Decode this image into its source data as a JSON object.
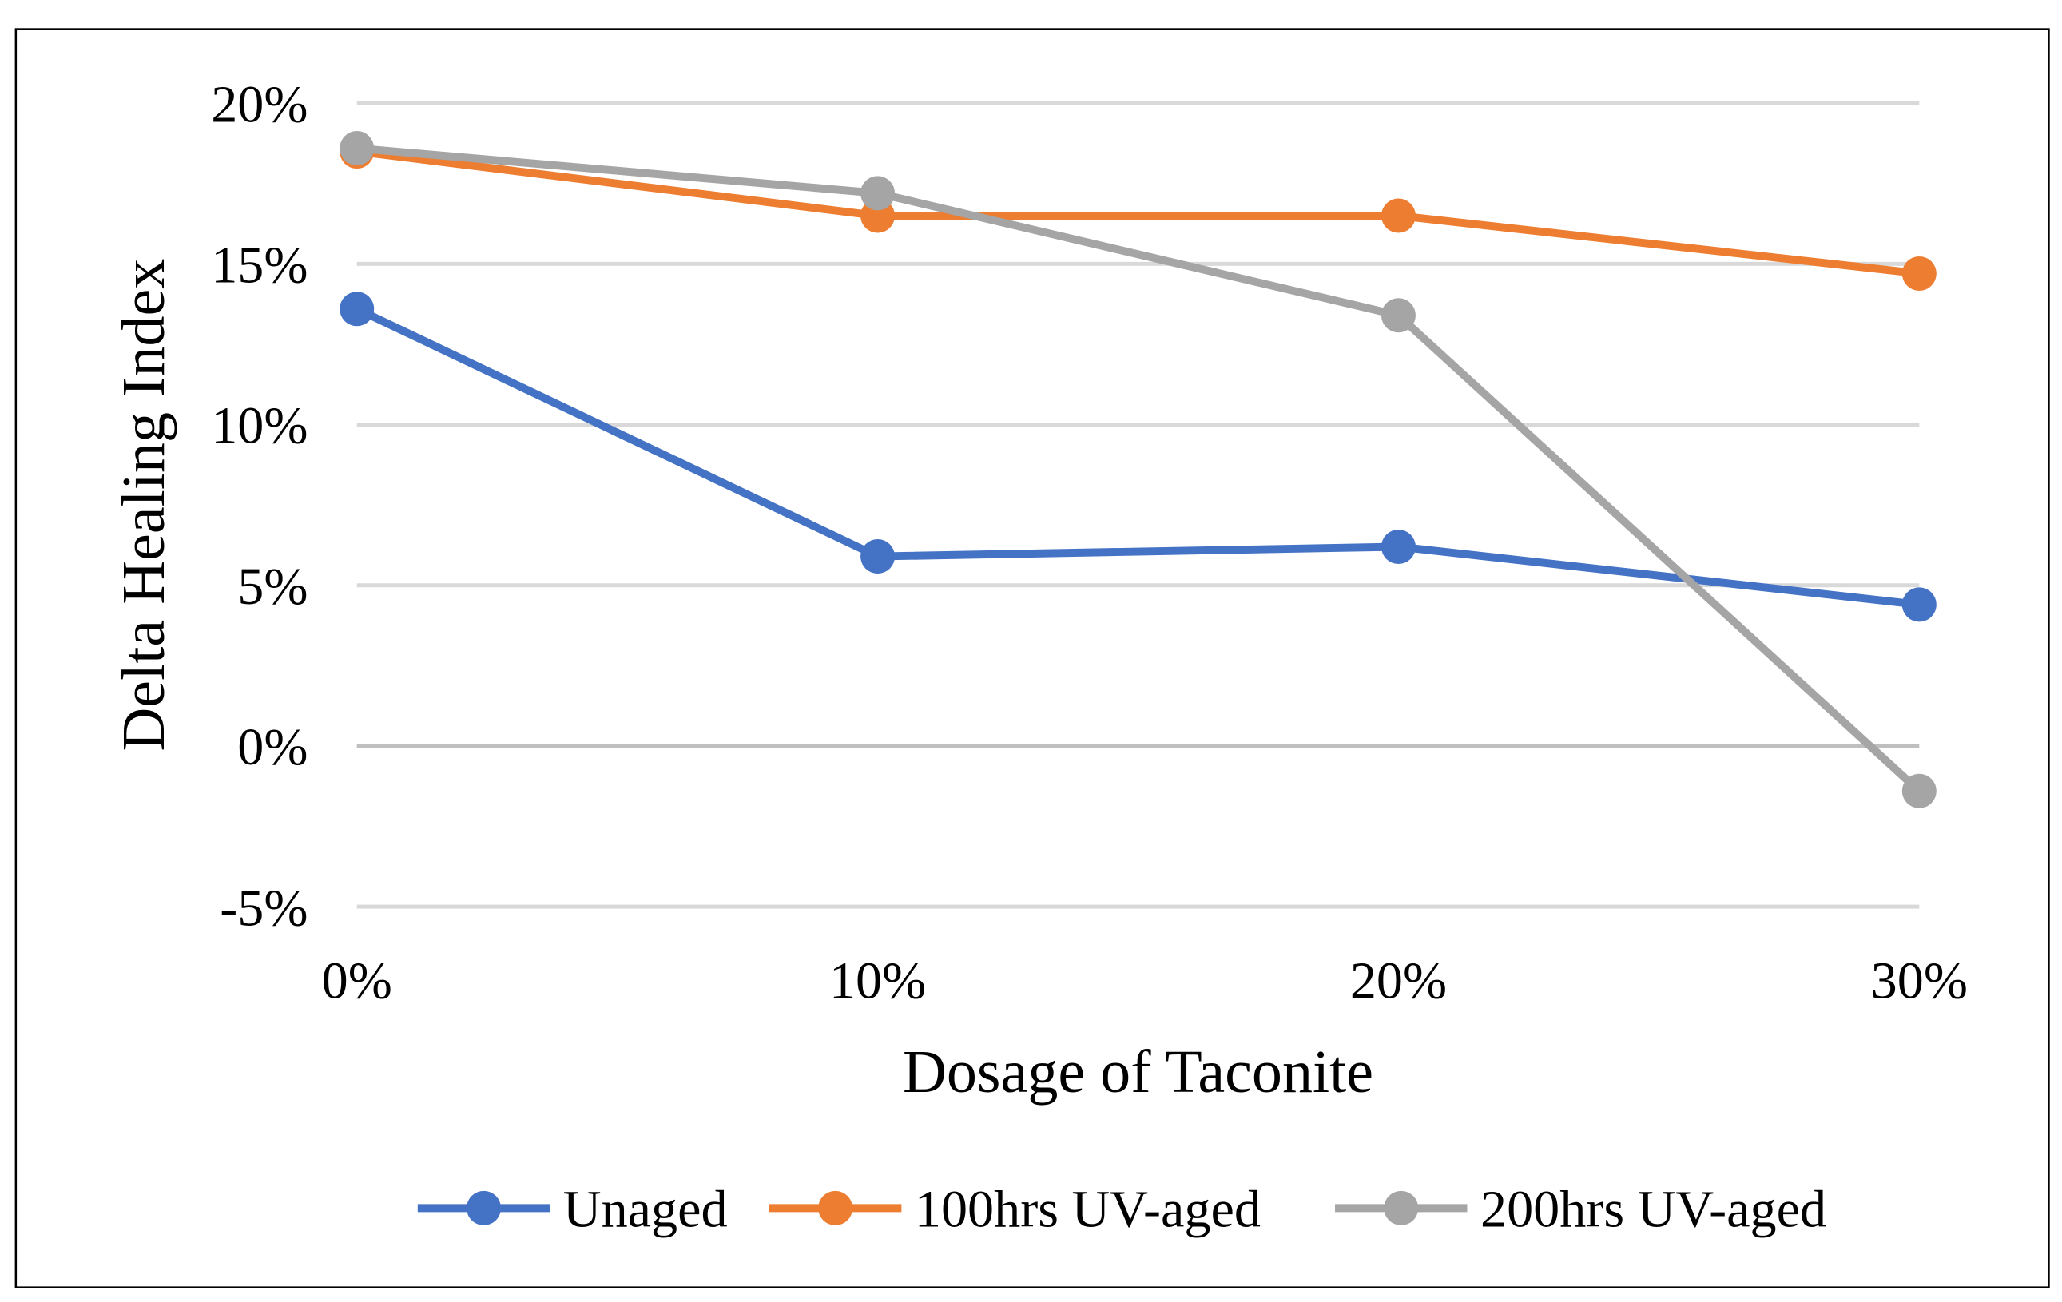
{
  "chart_data": {
    "type": "line",
    "title": "",
    "xlabel": "Dosage of Taconite",
    "ylabel": "Delta Healing Index",
    "categories": [
      "0%",
      "10%",
      "20%",
      "30%"
    ],
    "y_ticks": [
      -5,
      0,
      5,
      10,
      15,
      20
    ],
    "y_tick_labels": [
      "-5%",
      "0%",
      "5%",
      "10%",
      "15%",
      "20%"
    ],
    "ylim": [
      -5,
      20
    ],
    "grid": true,
    "legend_position": "bottom",
    "series": [
      {
        "name": "Unaged",
        "color": "#4472C4",
        "values": [
          13.6,
          5.9,
          6.2,
          4.4
        ]
      },
      {
        "name": "100hrs UV-aged",
        "color": "#ED7D31",
        "values": [
          18.5,
          16.5,
          16.5,
          14.7
        ]
      },
      {
        "name": "200hrs UV-aged",
        "color": "#A5A5A5",
        "values": [
          18.6,
          17.2,
          13.4,
          -1.4
        ]
      }
    ]
  }
}
